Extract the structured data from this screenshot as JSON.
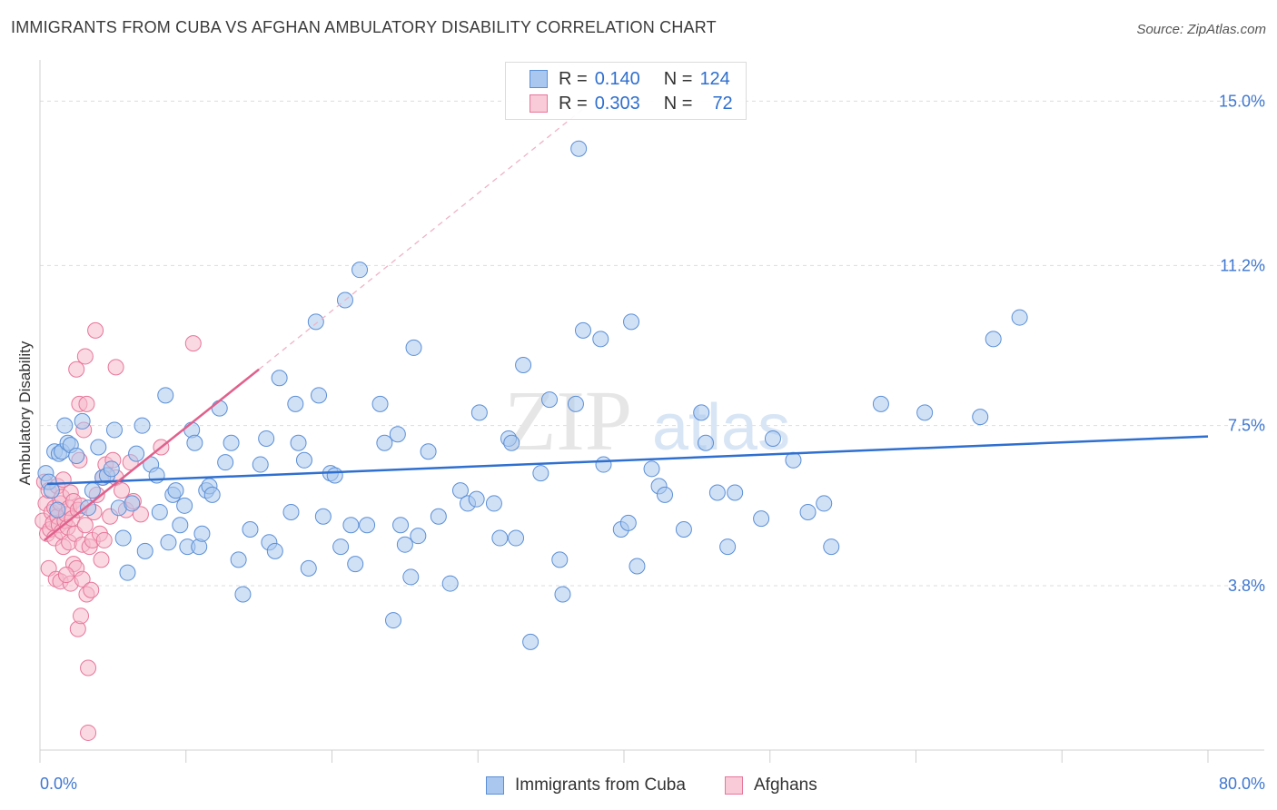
{
  "title": "IMMIGRANTS FROM CUBA VS AFGHAN AMBULATORY DISABILITY CORRELATION CHART",
  "source": "Source: ZipAtlas.com",
  "watermark": {
    "zip": "ZIP",
    "atlas": "atlas"
  },
  "legend": {
    "rows": [
      {
        "r_label": "R =",
        "r_value": "0.140",
        "n_label": "N =",
        "n_value": "124"
      },
      {
        "r_label": "R =",
        "r_value": "0.303",
        "n_label": "N =",
        "n_value": "72"
      }
    ]
  },
  "colors": {
    "blue_fill": "#aac8ef",
    "blue_stroke": "#5b8fd6",
    "blue_line": "#2f6fcf",
    "pink_fill": "#f6b9cc",
    "pink_stroke": "#e7769a",
    "pink_line": "#e0608c",
    "tick_label": "#3f77d0",
    "grid": "#dddddd"
  },
  "chart_data": {
    "type": "scatter",
    "title": "IMMIGRANTS FROM CUBA VS AFGHAN AMBULATORY DISABILITY CORRELATION CHART",
    "xlabel": "",
    "ylabel": "Ambulatory Disability",
    "xlim": [
      0,
      80
    ],
    "ylim": [
      0,
      15.7
    ],
    "x_tick_labels": [
      "0.0%",
      "80.0%"
    ],
    "y_ticks": [
      3.8,
      7.5,
      11.2,
      15.0
    ],
    "y_tick_labels": [
      "3.8%",
      "7.5%",
      "11.2%",
      "15.0%"
    ],
    "legend_position": "bottom-center",
    "series": [
      {
        "name": "Immigrants from Cuba",
        "color": "#aac8ef",
        "stats": {
          "R": 0.14,
          "N": 124
        },
        "trendline": {
          "x": [
            0.5,
            80.0
          ],
          "y": [
            6.15,
            7.25
          ]
        },
        "points": [
          [
            0.4,
            6.4
          ],
          [
            0.6,
            6.2
          ],
          [
            0.8,
            6.0
          ],
          [
            1.0,
            6.9
          ],
          [
            1.3,
            6.85
          ],
          [
            1.5,
            6.9
          ],
          [
            1.7,
            7.5
          ],
          [
            1.9,
            7.1
          ],
          [
            2.1,
            7.05
          ],
          [
            2.5,
            6.8
          ],
          [
            2.9,
            7.6
          ],
          [
            3.3,
            5.6
          ],
          [
            3.6,
            6.0
          ],
          [
            4.0,
            7.0
          ],
          [
            4.3,
            6.3
          ],
          [
            4.6,
            6.35
          ],
          [
            4.9,
            6.5
          ],
          [
            5.1,
            7.4
          ],
          [
            5.4,
            5.6
          ],
          [
            5.7,
            4.9
          ],
          [
            6.0,
            4.1
          ],
          [
            6.3,
            5.7
          ],
          [
            6.6,
            6.85
          ],
          [
            7.0,
            7.5
          ],
          [
            7.2,
            4.6
          ],
          [
            7.6,
            6.6
          ],
          [
            8.0,
            6.35
          ],
          [
            8.2,
            5.5
          ],
          [
            8.6,
            8.2
          ],
          [
            8.8,
            4.8
          ],
          [
            9.1,
            5.9
          ],
          [
            9.3,
            6.0
          ],
          [
            9.6,
            5.2
          ],
          [
            9.9,
            5.65
          ],
          [
            10.1,
            4.7
          ],
          [
            10.4,
            7.4
          ],
          [
            10.6,
            7.1
          ],
          [
            10.9,
            4.7
          ],
          [
            11.1,
            5.0
          ],
          [
            11.4,
            6.0
          ],
          [
            11.6,
            6.1
          ],
          [
            11.8,
            5.9
          ],
          [
            12.3,
            7.9
          ],
          [
            12.7,
            6.65
          ],
          [
            13.1,
            7.1
          ],
          [
            13.6,
            4.4
          ],
          [
            13.9,
            3.6
          ],
          [
            14.4,
            5.1
          ],
          [
            15.1,
            6.6
          ],
          [
            15.5,
            7.2
          ],
          [
            15.7,
            4.8
          ],
          [
            16.1,
            4.6
          ],
          [
            16.4,
            8.6
          ],
          [
            17.2,
            5.5
          ],
          [
            17.5,
            8.0
          ],
          [
            17.7,
            7.1
          ],
          [
            18.1,
            6.7
          ],
          [
            18.4,
            4.2
          ],
          [
            18.9,
            9.9
          ],
          [
            19.1,
            8.2
          ],
          [
            19.4,
            5.4
          ],
          [
            19.9,
            6.4
          ],
          [
            20.2,
            6.35
          ],
          [
            20.6,
            4.7
          ],
          [
            20.9,
            10.4
          ],
          [
            21.3,
            5.2
          ],
          [
            21.6,
            4.3
          ],
          [
            21.9,
            11.1
          ],
          [
            22.4,
            5.2
          ],
          [
            23.3,
            8.0
          ],
          [
            23.6,
            7.1
          ],
          [
            24.2,
            3.0
          ],
          [
            24.5,
            7.3
          ],
          [
            24.7,
            5.2
          ],
          [
            25.0,
            4.75
          ],
          [
            25.4,
            4.0
          ],
          [
            25.6,
            9.3
          ],
          [
            25.9,
            4.95
          ],
          [
            26.6,
            6.9
          ],
          [
            27.3,
            5.4
          ],
          [
            28.1,
            3.85
          ],
          [
            28.8,
            6.0
          ],
          [
            29.3,
            5.7
          ],
          [
            29.9,
            5.8
          ],
          [
            30.1,
            7.8
          ],
          [
            31.1,
            5.7
          ],
          [
            31.5,
            4.9
          ],
          [
            32.1,
            7.2
          ],
          [
            32.3,
            7.1
          ],
          [
            32.6,
            4.9
          ],
          [
            33.1,
            8.9
          ],
          [
            33.6,
            2.5
          ],
          [
            34.3,
            6.4
          ],
          [
            34.9,
            8.1
          ],
          [
            35.6,
            4.4
          ],
          [
            35.8,
            3.6
          ],
          [
            36.7,
            8.0
          ],
          [
            36.9,
            13.9
          ],
          [
            37.2,
            9.7
          ],
          [
            38.4,
            9.5
          ],
          [
            38.6,
            6.6
          ],
          [
            39.8,
            5.1
          ],
          [
            40.3,
            5.25
          ],
          [
            40.5,
            9.9
          ],
          [
            40.9,
            4.25
          ],
          [
            41.9,
            6.5
          ],
          [
            42.4,
            6.1
          ],
          [
            42.8,
            5.9
          ],
          [
            44.1,
            5.1
          ],
          [
            45.3,
            7.8
          ],
          [
            45.6,
            7.1
          ],
          [
            46.4,
            5.95
          ],
          [
            47.1,
            4.7
          ],
          [
            47.6,
            5.95
          ],
          [
            49.4,
            5.35
          ],
          [
            50.2,
            7.2
          ],
          [
            51.6,
            6.7
          ],
          [
            52.6,
            5.5
          ],
          [
            53.7,
            5.7
          ],
          [
            54.2,
            4.7
          ],
          [
            57.6,
            8.0
          ],
          [
            60.6,
            7.8
          ],
          [
            64.4,
            7.7
          ],
          [
            65.3,
            9.5
          ],
          [
            67.1,
            10.0
          ],
          [
            1.2,
            5.55
          ]
        ]
      },
      {
        "name": "Afghans",
        "color": "#f6b9cc",
        "stats": {
          "R": 0.303,
          "N": 72
        },
        "trendline": {
          "x": [
            0.3,
            15.0
          ],
          "y": [
            4.85,
            8.8
          ],
          "dashed_extension": {
            "x": [
              15.0,
              37.5
            ],
            "y": [
              8.8,
              14.9
            ]
          }
        },
        "points": [
          [
            0.2,
            5.3
          ],
          [
            0.3,
            6.2
          ],
          [
            0.4,
            5.7
          ],
          [
            0.5,
            5.0
          ],
          [
            0.6,
            6.0
          ],
          [
            0.6,
            4.2
          ],
          [
            0.7,
            5.1
          ],
          [
            0.8,
            5.5
          ],
          [
            0.9,
            5.25
          ],
          [
            1.0,
            5.6
          ],
          [
            1.0,
            4.9
          ],
          [
            1.1,
            3.95
          ],
          [
            1.2,
            5.4
          ],
          [
            1.2,
            6.1
          ],
          [
            1.3,
            5.2
          ],
          [
            1.4,
            3.9
          ],
          [
            1.4,
            5.7
          ],
          [
            1.5,
            5.05
          ],
          [
            1.5,
            5.85
          ],
          [
            1.6,
            4.7
          ],
          [
            1.6,
            6.25
          ],
          [
            1.7,
            5.3
          ],
          [
            1.8,
            5.45
          ],
          [
            1.9,
            5.15
          ],
          [
            2.0,
            5.6
          ],
          [
            2.0,
            4.8
          ],
          [
            2.1,
            5.95
          ],
          [
            2.1,
            3.85
          ],
          [
            2.2,
            5.35
          ],
          [
            2.3,
            5.75
          ],
          [
            2.3,
            4.3
          ],
          [
            2.4,
            5.0
          ],
          [
            2.5,
            4.2
          ],
          [
            2.5,
            8.8
          ],
          [
            2.6,
            2.8
          ],
          [
            2.6,
            5.55
          ],
          [
            2.7,
            6.7
          ],
          [
            2.7,
            8.0
          ],
          [
            2.8,
            3.1
          ],
          [
            2.8,
            5.65
          ],
          [
            2.9,
            3.95
          ],
          [
            2.9,
            4.75
          ],
          [
            3.0,
            7.4
          ],
          [
            3.1,
            9.1
          ],
          [
            3.1,
            5.2
          ],
          [
            3.2,
            8.0
          ],
          [
            3.2,
            3.6
          ],
          [
            3.3,
            1.9
          ],
          [
            3.3,
            0.4
          ],
          [
            3.4,
            4.7
          ],
          [
            3.5,
            3.7
          ],
          [
            3.6,
            4.85
          ],
          [
            3.7,
            5.5
          ],
          [
            3.8,
            9.7
          ],
          [
            3.9,
            5.9
          ],
          [
            4.1,
            5.0
          ],
          [
            4.2,
            4.4
          ],
          [
            4.3,
            6.3
          ],
          [
            4.4,
            4.85
          ],
          [
            4.5,
            6.6
          ],
          [
            4.8,
            5.4
          ],
          [
            5.0,
            6.7
          ],
          [
            5.2,
            6.3
          ],
          [
            5.2,
            8.85
          ],
          [
            5.6,
            6.0
          ],
          [
            5.9,
            5.55
          ],
          [
            6.2,
            6.65
          ],
          [
            6.4,
            5.75
          ],
          [
            6.9,
            5.45
          ],
          [
            8.3,
            7.0
          ],
          [
            10.5,
            9.4
          ],
          [
            1.8,
            4.05
          ]
        ]
      }
    ]
  },
  "bottom_legend": {
    "items": [
      "Immigrants from Cuba",
      "Afghans"
    ]
  }
}
